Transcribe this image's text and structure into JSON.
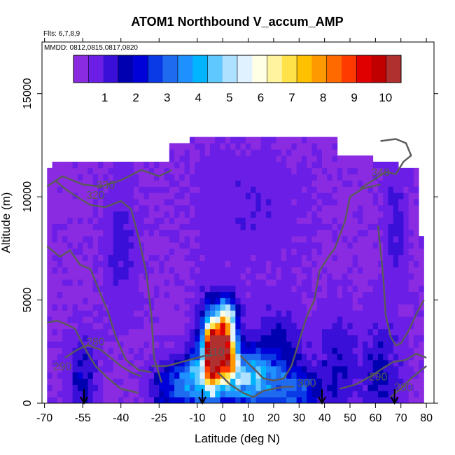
{
  "chart_data": {
    "type": "heatmap",
    "title": "ATOM1 Northbound V_accum_AMP",
    "flights_label": "Flts: 6,7,8,9",
    "dates_label": "MMDD: 0812,0815,0817,0820",
    "xlabel": "Latitude (deg N)",
    "ylabel": "Altitude (m)",
    "xlim": [
      -71,
      83
    ],
    "ylim": [
      0,
      17500
    ],
    "x_ticks": [
      -70,
      -55,
      -40,
      -25,
      -10,
      0,
      10,
      20,
      30,
      40,
      50,
      60,
      70,
      80
    ],
    "y_ticks": [
      0,
      5000,
      10000,
      15000
    ],
    "colorbar": {
      "range": [
        0,
        10.5
      ],
      "ticks": [
        1,
        2,
        3,
        4,
        5,
        6,
        7,
        8,
        9,
        10
      ],
      "colors": [
        "#8a2be2",
        "#6a1ee6",
        "#3a0fd8",
        "#0000b0",
        "#0000d8",
        "#0a3ae6",
        "#1e6bf0",
        "#1e90ff",
        "#00b4ff",
        "#5ec8ff",
        "#aee0ff",
        "#e0f2ff",
        "#ffffe6",
        "#fff3a0",
        "#ffe14a",
        "#ffc000",
        "#ff9900",
        "#ff6a00",
        "#ff3a00",
        "#e00000",
        "#c00000",
        "#b03030"
      ]
    },
    "background_value": 0.4,
    "coverage": [
      [
        -69,
        0,
        11200
      ],
      [
        -66,
        0,
        11500
      ],
      [
        -60,
        0,
        11700
      ],
      [
        -45,
        0,
        11700
      ],
      [
        -30,
        0,
        11700
      ],
      [
        -20,
        0,
        12600
      ],
      [
        -12,
        0,
        12900
      ],
      [
        10,
        0,
        12900
      ],
      [
        25,
        0,
        12900
      ],
      [
        36,
        0,
        12900
      ],
      [
        45,
        0,
        12000
      ],
      [
        60,
        0,
        11700
      ],
      [
        70,
        0,
        11200
      ],
      [
        76,
        0,
        11200
      ],
      [
        78,
        0,
        8000
      ],
      [
        80,
        0,
        8000
      ]
    ],
    "hotspots": [
      {
        "lat": -55,
        "alt": 1000,
        "wlat": 5,
        "walt": 2000,
        "value": 1.8
      },
      {
        "lat": -40,
        "alt": 7500,
        "wlat": 6,
        "walt": 3000,
        "value": 1.2
      },
      {
        "lat": -20,
        "alt": 800,
        "wlat": 8,
        "walt": 1200,
        "value": 2.5
      },
      {
        "lat": -12,
        "alt": 1200,
        "wlat": 5,
        "walt": 1200,
        "value": 3.0
      },
      {
        "lat": -5,
        "alt": 2200,
        "wlat": 5,
        "walt": 2400,
        "value": 5.2
      },
      {
        "lat": -4,
        "alt": 2400,
        "wlat": 2.5,
        "walt": 1300,
        "value": 9.5
      },
      {
        "lat": 0,
        "alt": 2700,
        "wlat": 2.5,
        "walt": 1300,
        "value": 7.2
      },
      {
        "lat": 3,
        "alt": 2300,
        "wlat": 3,
        "walt": 1200,
        "value": 6.3
      },
      {
        "lat": 2,
        "alt": 4200,
        "wlat": 4,
        "walt": 1000,
        "value": 4.6
      },
      {
        "lat": 10,
        "alt": 1200,
        "wlat": 10,
        "walt": 1400,
        "value": 4.2
      },
      {
        "lat": 22,
        "alt": 2000,
        "wlat": 10,
        "walt": 2500,
        "value": 1.8
      },
      {
        "lat": 30,
        "alt": 500,
        "wlat": 8,
        "walt": 1000,
        "value": 2.6
      },
      {
        "lat": 45,
        "alt": 1800,
        "wlat": 7,
        "walt": 2500,
        "value": 1.5
      },
      {
        "lat": 62,
        "alt": 1500,
        "wlat": 8,
        "walt": 2500,
        "value": 1.6
      },
      {
        "lat": 68,
        "alt": 8500,
        "wlat": 4,
        "walt": 2500,
        "value": 1.3
      },
      {
        "lat": 10,
        "alt": 9500,
        "wlat": 20,
        "walt": 2500,
        "value": 0.9
      }
    ],
    "contours": [
      {
        "label": "330",
        "label_at": [
          -46,
          10400
        ],
        "points": [
          [
            -69,
            10500
          ],
          [
            -63,
            11000
          ],
          [
            -55,
            10600
          ],
          [
            -48,
            10500
          ],
          [
            -40,
            10800
          ],
          [
            -32,
            11300
          ],
          [
            -25,
            11000
          ],
          [
            -20,
            11300
          ]
        ]
      },
      {
        "label": "320",
        "label_at": [
          -50,
          9900
        ],
        "points": [
          [
            -66,
            10800
          ],
          [
            -61,
            10300
          ],
          [
            -56,
            9900
          ],
          [
            -52,
            9600
          ],
          [
            -46,
            9500
          ],
          [
            -40,
            9800
          ],
          [
            -36,
            9400
          ],
          [
            -33,
            8000
          ],
          [
            -30,
            6300
          ],
          [
            -28,
            4200
          ],
          [
            -27,
            2200
          ],
          [
            -24,
            1000
          ]
        ]
      },
      {
        "label": "",
        "label_at": null,
        "points": [
          [
            -69,
            7600
          ],
          [
            -64,
            7100
          ],
          [
            -60,
            7400
          ],
          [
            -56,
            6700
          ],
          [
            -52,
            6500
          ],
          [
            -49,
            5600
          ],
          [
            -45,
            4400
          ],
          [
            -42,
            3200
          ],
          [
            -38,
            2100
          ],
          [
            -33,
            1600
          ],
          [
            -28,
            1500
          ]
        ]
      },
      {
        "label": "290",
        "label_at": [
          -63,
          1600
        ],
        "points": [
          [
            -69,
            3900
          ],
          [
            -65,
            4000
          ],
          [
            -61,
            3800
          ],
          [
            -58,
            3600
          ],
          [
            -56,
            3100
          ],
          [
            -53,
            2400
          ],
          [
            -50,
            1800
          ],
          [
            -45,
            1200
          ],
          [
            -40,
            700
          ],
          [
            -33,
            500
          ]
        ]
      },
      {
        "label": "280",
        "label_at": [
          -50,
          2800
        ],
        "points": [
          [
            -62,
            2200
          ],
          [
            -57,
            2600
          ],
          [
            -53,
            2800
          ],
          [
            -48,
            2600
          ],
          [
            -44,
            2200
          ],
          [
            -40,
            1800
          ],
          [
            -36,
            1500
          ],
          [
            -32,
            1300
          ]
        ]
      },
      {
        "label": "310",
        "label_at": [
          -3,
          2300
        ],
        "points": [
          [
            -28,
            1800
          ],
          [
            -22,
            1800
          ],
          [
            -16,
            2000
          ],
          [
            -10,
            2200
          ],
          [
            -7,
            2300
          ],
          [
            -4,
            2300
          ]
        ]
      },
      {
        "label": "",
        "label_at": null,
        "points": [
          [
            7,
            2300
          ],
          [
            12,
            1700
          ],
          [
            16,
            1200
          ],
          [
            20,
            1100
          ],
          [
            24,
            1200
          ],
          [
            27,
            1800
          ],
          [
            30,
            3000
          ],
          [
            33,
            4200
          ],
          [
            36,
            5000
          ],
          [
            38,
            6400
          ],
          [
            41,
            7000
          ],
          [
            44,
            7500
          ],
          [
            48,
            8800
          ],
          [
            50,
            10000
          ],
          [
            55,
            10400
          ],
          [
            62,
            10600
          ]
        ]
      },
      {
        "label": "300",
        "label_at": [
          33,
          800
        ],
        "points": [
          [
            -2,
            1500
          ],
          [
            3,
            900
          ],
          [
            8,
            500
          ],
          [
            12,
            300
          ],
          [
            16,
            600
          ],
          [
            20,
            700
          ],
          [
            24,
            800
          ],
          [
            28,
            800
          ]
        ]
      },
      {
        "label": "340",
        "label_at": [
          62,
          11000
        ],
        "points": [
          [
            54,
            10400
          ],
          [
            59,
            10800
          ],
          [
            64,
            11200
          ],
          [
            68,
            11100
          ],
          [
            71,
            11700
          ],
          [
            74,
            12000
          ],
          [
            72,
            12600
          ],
          [
            68,
            12800
          ],
          [
            62,
            12700
          ]
        ]
      },
      {
        "label": "",
        "label_at": null,
        "points": [
          [
            61,
            8600
          ],
          [
            63,
            6200
          ],
          [
            64,
            4300
          ],
          [
            66,
            3200
          ],
          [
            68,
            2800
          ],
          [
            70,
            2900
          ],
          [
            73,
            3500
          ],
          [
            76,
            4300
          ],
          [
            79,
            5000
          ]
        ]
      },
      {
        "label": "290",
        "label_at": [
          61,
          1100
        ],
        "points": [
          [
            46,
            700
          ],
          [
            52,
            900
          ],
          [
            58,
            1300
          ],
          [
            63,
            1700
          ],
          [
            67,
            2000
          ],
          [
            72,
            2100
          ],
          [
            76,
            2400
          ],
          [
            80,
            2200
          ]
        ]
      },
      {
        "label": "280",
        "label_at": [
          71,
          600
        ],
        "points": [
          [
            66,
            300
          ],
          [
            70,
            700
          ],
          [
            74,
            1200
          ],
          [
            78,
            1600
          ],
          [
            80,
            1800
          ]
        ]
      }
    ],
    "arrows_lat": [
      -54.5,
      -8,
      39,
      67.5
    ]
  }
}
